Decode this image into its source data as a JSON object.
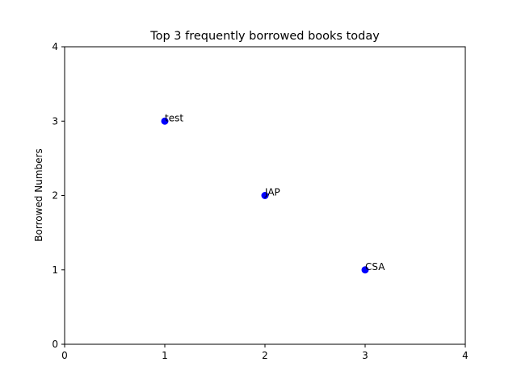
{
  "chart_data": {
    "type": "scatter",
    "title": "Top 3 frequently borrowed books today",
    "xlabel": "",
    "ylabel": "Borrowed Numbers",
    "xlim": [
      0,
      4
    ],
    "ylim": [
      0,
      4
    ],
    "xticks": [
      "0",
      "1",
      "2",
      "3",
      "4"
    ],
    "yticks": [
      "0",
      "1",
      "2",
      "3",
      "4"
    ],
    "grid": false,
    "marker_color": "#0000ff",
    "points": [
      {
        "x": 1,
        "y": 3,
        "label": "test"
      },
      {
        "x": 2,
        "y": 2,
        "label": "JAP"
      },
      {
        "x": 3,
        "y": 1,
        "label": "CSA"
      }
    ]
  }
}
